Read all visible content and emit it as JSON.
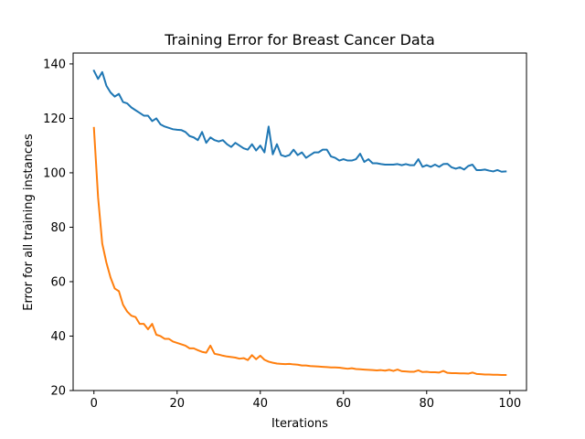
{
  "chart_data": {
    "type": "line",
    "title": "Training Error for Breast Cancer Data",
    "xlabel": "Iterations",
    "ylabel": "Error for all training instances",
    "xlim": [
      -5,
      104
    ],
    "ylim": [
      20,
      144
    ],
    "x_ticks": [
      0,
      20,
      40,
      60,
      80,
      100
    ],
    "y_ticks": [
      20,
      40,
      60,
      80,
      100,
      120,
      140
    ],
    "grid": false,
    "legend": "none",
    "series": [
      {
        "color": "#1f77b4",
        "x": [
          0,
          1,
          2,
          3,
          4,
          5,
          6,
          7,
          8,
          9,
          10,
          11,
          12,
          13,
          14,
          15,
          16,
          17,
          18,
          19,
          20,
          21,
          22,
          23,
          24,
          25,
          26,
          27,
          28,
          29,
          30,
          31,
          32,
          33,
          34,
          35,
          36,
          37,
          38,
          39,
          40,
          41,
          42,
          43,
          44,
          45,
          46,
          47,
          48,
          49,
          50,
          51,
          52,
          53,
          54,
          55,
          56,
          57,
          58,
          59,
          60,
          61,
          62,
          63,
          64,
          65,
          66,
          67,
          68,
          69,
          70,
          71,
          72,
          73,
          74,
          75,
          76,
          77,
          78,
          79,
          80,
          81,
          82,
          83,
          84,
          85,
          86,
          87,
          88,
          89,
          90,
          91,
          92,
          93,
          94,
          95,
          96,
          97,
          98,
          99
        ],
        "values": [
          137.5,
          134.5,
          137,
          132,
          129.5,
          128,
          129,
          126,
          125.5,
          124,
          123,
          122,
          121,
          121,
          119,
          120,
          117.8,
          117,
          116.5,
          116,
          115.8,
          115.7,
          115,
          113.5,
          113,
          112,
          115,
          111,
          113,
          112,
          111.5,
          112,
          110.5,
          109.5,
          111,
          110,
          109,
          108.5,
          110.5,
          108.2,
          110,
          107.5,
          117,
          106.8,
          110.5,
          106.5,
          106,
          106.5,
          108.5,
          106.5,
          107.5,
          105.5,
          106.5,
          107.5,
          107.5,
          108.5,
          108.5,
          106,
          105.5,
          104.5,
          105,
          104.5,
          104.5,
          105,
          107,
          104,
          105,
          103.5,
          103.5,
          103.2,
          103,
          103,
          103,
          103.2,
          102.8,
          103.2,
          102.8,
          102.8,
          105,
          102.2,
          102.8,
          102.2,
          103,
          102.2,
          103.2,
          103.3,
          102,
          101.5,
          102,
          101.2,
          102.5,
          103,
          101,
          101,
          101.2,
          100.8,
          100.5,
          101,
          100.4,
          100.5
        ]
      },
      {
        "color": "#ff7f0e",
        "x": [
          0,
          1,
          2,
          3,
          4,
          5,
          6,
          7,
          8,
          9,
          10,
          11,
          12,
          13,
          14,
          15,
          16,
          17,
          18,
          19,
          20,
          21,
          22,
          23,
          24,
          25,
          26,
          27,
          28,
          29,
          30,
          31,
          32,
          33,
          34,
          35,
          36,
          37,
          38,
          39,
          40,
          41,
          42,
          43,
          44,
          45,
          46,
          47,
          48,
          49,
          50,
          51,
          52,
          53,
          54,
          55,
          56,
          57,
          58,
          59,
          60,
          61,
          62,
          63,
          64,
          65,
          66,
          67,
          68,
          69,
          70,
          71,
          72,
          73,
          74,
          75,
          76,
          77,
          78,
          79,
          80,
          81,
          82,
          83,
          84,
          85,
          86,
          87,
          88,
          89,
          90,
          91,
          92,
          93,
          94,
          95,
          96,
          97,
          98,
          99
        ],
        "values": [
          116.5,
          91,
          74,
          67,
          61.5,
          57.5,
          56.5,
          51.5,
          49,
          47.5,
          47,
          44.5,
          44.5,
          42.5,
          44.5,
          40.5,
          40,
          39,
          39,
          38,
          37.5,
          37,
          36.5,
          35.5,
          35.5,
          34.8,
          34.2,
          33.9,
          36.5,
          33.5,
          33.2,
          32.8,
          32.5,
          32.3,
          32.1,
          31.7,
          31.9,
          31.2,
          33,
          31.5,
          32.8,
          31.3,
          30.6,
          30.2,
          29.9,
          29.8,
          29.7,
          29.8,
          29.6,
          29.5,
          29.2,
          29.2,
          29,
          28.9,
          28.8,
          28.7,
          28.6,
          28.5,
          28.5,
          28.4,
          28.2,
          28,
          28.2,
          27.9,
          27.8,
          27.7,
          27.6,
          27.5,
          27.4,
          27.5,
          27.3,
          27.6,
          27.2,
          27.7,
          27.1,
          27,
          26.9,
          26.9,
          27.4,
          26.8,
          26.9,
          26.7,
          26.7,
          26.6,
          27.2,
          26.5,
          26.4,
          26.4,
          26.3,
          26.3,
          26.2,
          26.6,
          26.1,
          26,
          25.9,
          25.9,
          25.8,
          25.8,
          25.7,
          25.7
        ]
      }
    ]
  }
}
